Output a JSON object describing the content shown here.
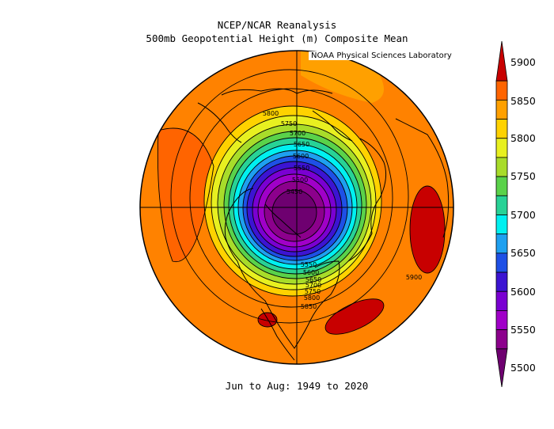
{
  "header": {
    "line1": "NCEP/NCAR Reanalysis",
    "line2": "500mb Geopotential Height (m) Composite Mean",
    "credit": "NOAA Physical Sciences Laboratory"
  },
  "footer": {
    "period": "Jun to Aug: 1949 to 2020"
  },
  "colorbar": {
    "ticks": [
      "5900",
      "5850",
      "5800",
      "5750",
      "5700",
      "5650",
      "5600",
      "5550",
      "5500"
    ],
    "colors": [
      "#c80000",
      "#ff6400",
      "#ffa000",
      "#ffd200",
      "#e8f020",
      "#a8dc2a",
      "#5ad24a",
      "#28d296",
      "#00f0f0",
      "#1ea0f0",
      "#1e50e6",
      "#3c14d2",
      "#7a00d2",
      "#a000c8",
      "#8c008c",
      "#6e0070"
    ]
  },
  "contour_labels": {
    "upper_stack": [
      "5800",
      "5750",
      "5700",
      "5650",
      "5600",
      "5550",
      "5500",
      "5450"
    ],
    "lower_stack": [
      "5550",
      "5600",
      "5650",
      "5700",
      "5750",
      "5800",
      "5850"
    ],
    "east": "5900"
  }
}
